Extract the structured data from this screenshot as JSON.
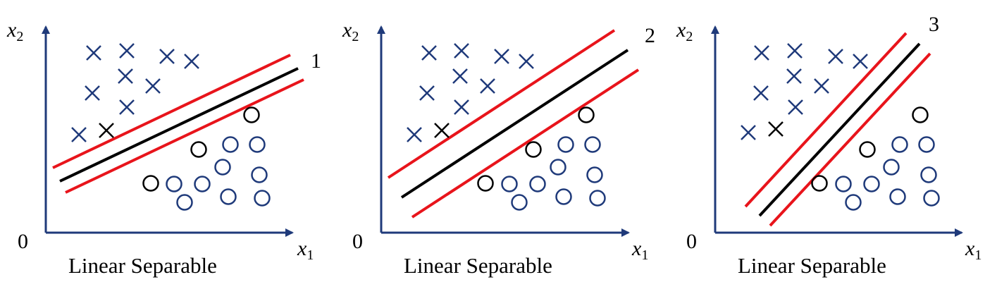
{
  "colors": {
    "axis": "#1F3A7A",
    "cross": "#1F3A7A",
    "circle": "#1F3A7A",
    "outlier": "#000000",
    "margin_line": "#E8141B",
    "separator": "#000000"
  },
  "icons": {
    "cross": "cross-marker-icon",
    "circle": "circle-marker-icon",
    "arrow": "arrow-head-icon"
  },
  "panels": [
    {
      "caption": "Linear Separable",
      "origin_label": "0",
      "x_label": "x",
      "x_sub": "1",
      "y_label": "x",
      "y_sub": "2",
      "line_label": "1"
    },
    {
      "caption": "Linear Separable",
      "origin_label": "0",
      "x_label": "x",
      "x_sub": "1",
      "y_label": "x",
      "y_sub": "2",
      "line_label": "2"
    },
    {
      "caption": "Linear Separable",
      "origin_label": "0",
      "x_label": "x",
      "x_sub": "1",
      "y_label": "x",
      "y_sub": "2",
      "line_label": "3"
    }
  ]
}
